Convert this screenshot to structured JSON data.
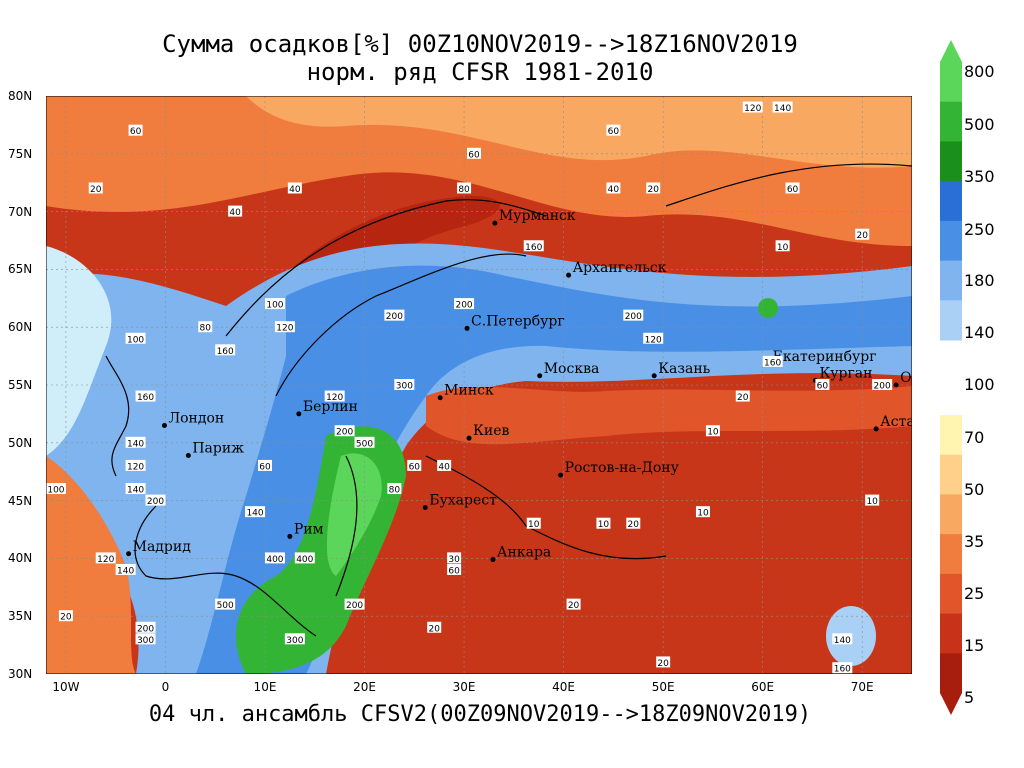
{
  "title_line1": "Сумма осадков[%] 00Z10NOV2019-->18Z16NOV2019",
  "title_line2": "норм. ряд CFSR 1981-2010",
  "footer": "04 чл. ансамбль CFSV2(00Z09NOV2019-->18Z09NOV2019)",
  "lat_ticks": [
    "80N",
    "75N",
    "70N",
    "65N",
    "60N",
    "55N",
    "50N",
    "45N",
    "40N",
    "35N",
    "30N"
  ],
  "lon_ticks": [
    "10W",
    "0",
    "10E",
    "20E",
    "30E",
    "40E",
    "50E",
    "60E",
    "70E"
  ],
  "colorbar": {
    "labels": [
      "800",
      "500",
      "350",
      "250",
      "180",
      "140",
      "100",
      "70",
      "50",
      "35",
      "25",
      "15",
      "5"
    ],
    "colors": [
      "#5bd65b",
      "#34b434",
      "#1a8f1a",
      "#2a6fd6",
      "#4a8fe6",
      "#7fb4ef",
      "#aad0f5",
      "#cfeefa",
      "#fff4b0",
      "#ffd08a",
      "#f8a860",
      "#f07d3d",
      "#e0552a",
      "#c83218",
      "#a81e0e"
    ]
  },
  "cities": [
    {
      "name": "Мурманск",
      "lon": 33.1,
      "lat": 69.0
    },
    {
      "name": "Архангельск",
      "lon": 40.5,
      "lat": 64.5
    },
    {
      "name": "С.Петербург",
      "lon": 30.3,
      "lat": 59.9
    },
    {
      "name": "Москва",
      "lon": 37.6,
      "lat": 55.8
    },
    {
      "name": "Казань",
      "lon": 49.1,
      "lat": 55.8
    },
    {
      "name": "Екатеринбург",
      "lon": 60.6,
      "lat": 56.8
    },
    {
      "name": "Курган",
      "lon": 65.3,
      "lat": 55.4
    },
    {
      "name": "Омск",
      "lon": 73.4,
      "lat": 55.0
    },
    {
      "name": "Астана",
      "lon": 71.4,
      "lat": 51.2
    },
    {
      "name": "Минск",
      "lon": 27.6,
      "lat": 53.9
    },
    {
      "name": "Берлин",
      "lon": 13.4,
      "lat": 52.5
    },
    {
      "name": "Лондон",
      "lon": -0.1,
      "lat": 51.5
    },
    {
      "name": "Париж",
      "lon": 2.3,
      "lat": 48.9
    },
    {
      "name": "Киев",
      "lon": 30.5,
      "lat": 50.4
    },
    {
      "name": "Ростов-на-Дону",
      "lon": 39.7,
      "lat": 47.2
    },
    {
      "name": "Бухарест",
      "lon": 26.1,
      "lat": 44.4
    },
    {
      "name": "Рим",
      "lon": 12.5,
      "lat": 41.9
    },
    {
      "name": "Мадрид",
      "lon": -3.7,
      "lat": 40.4
    },
    {
      "name": "Анкара",
      "lon": 32.9,
      "lat": 39.9
    }
  ],
  "contour_labels": [
    {
      "v": "60",
      "lon": -3,
      "lat": 77
    },
    {
      "v": "20",
      "lon": -7,
      "lat": 72
    },
    {
      "v": "40",
      "lon": 7,
      "lat": 70
    },
    {
      "v": "40",
      "lon": 13,
      "lat": 72
    },
    {
      "v": "60",
      "lon": 31,
      "lat": 75
    },
    {
      "v": "80",
      "lon": 30,
      "lat": 72
    },
    {
      "v": "60",
      "lon": 45,
      "lat": 77
    },
    {
      "v": "40",
      "lon": 45,
      "lat": 72
    },
    {
      "v": "20",
      "lon": 49,
      "lat": 72
    },
    {
      "v": "120",
      "lon": 59,
      "lat": 79
    },
    {
      "v": "140",
      "lon": 62,
      "lat": 79
    },
    {
      "v": "60",
      "lon": 63,
      "lat": 72
    },
    {
      "v": "20",
      "lon": 70,
      "lat": 68
    },
    {
      "v": "10",
      "lon": 62,
      "lat": 67
    },
    {
      "v": "160",
      "lon": 37,
      "lat": 67
    },
    {
      "v": "200",
      "lon": 23,
      "lat": 61
    },
    {
      "v": "200",
      "lon": 30,
      "lat": 62
    },
    {
      "v": "200",
      "lon": 47,
      "lat": 61
    },
    {
      "v": "100",
      "lon": 11,
      "lat": 62
    },
    {
      "v": "120",
      "lon": 12,
      "lat": 60
    },
    {
      "v": "160",
      "lon": 6,
      "lat": 58
    },
    {
      "v": "80",
      "lon": 4,
      "lat": 60
    },
    {
      "v": "100",
      "lon": -3,
      "lat": 59
    },
    {
      "v": "300",
      "lon": 24,
      "lat": 55
    },
    {
      "v": "120",
      "lon": 17,
      "lat": 54
    },
    {
      "v": "200",
      "lon": 18,
      "lat": 51
    },
    {
      "v": "500",
      "lon": 20,
      "lat": 50
    },
    {
      "v": "60",
      "lon": 25,
      "lat": 48
    },
    {
      "v": "40",
      "lon": 28,
      "lat": 48
    },
    {
      "v": "80",
      "lon": 23,
      "lat": 46
    },
    {
      "v": "200",
      "lon": -1,
      "lat": 45
    },
    {
      "v": "140",
      "lon": -3,
      "lat": 46
    },
    {
      "v": "100",
      "lon": -11,
      "lat": 46
    },
    {
      "v": "160",
      "lon": -2,
      "lat": 54
    },
    {
      "v": "140",
      "lon": -3,
      "lat": 50
    },
    {
      "v": "120",
      "lon": -3,
      "lat": 48
    },
    {
      "v": "140",
      "lon": 9,
      "lat": 44
    },
    {
      "v": "60",
      "lon": 10,
      "lat": 48
    },
    {
      "v": "120",
      "lon": -6,
      "lat": 40
    },
    {
      "v": "140",
      "lon": -4,
      "lat": 39
    },
    {
      "v": "400",
      "lon": 11,
      "lat": 40
    },
    {
      "v": "400",
      "lon": 14,
      "lat": 40
    },
    {
      "v": "500",
      "lon": 6,
      "lat": 36
    },
    {
      "v": "200",
      "lon": -2,
      "lat": 34
    },
    {
      "v": "300",
      "lon": -2,
      "lat": 33
    },
    {
      "v": "300",
      "lon": 13,
      "lat": 33
    },
    {
      "v": "200",
      "lon": 19,
      "lat": 36
    },
    {
      "v": "30",
      "lon": 29,
      "lat": 40
    },
    {
      "v": "60",
      "lon": 29,
      "lat": 39
    },
    {
      "v": "20",
      "lon": 27,
      "lat": 34
    },
    {
      "v": "10",
      "lon": 37,
      "lat": 43
    },
    {
      "v": "10",
      "lon": 44,
      "lat": 43
    },
    {
      "v": "20",
      "lon": 47,
      "lat": 43
    },
    {
      "v": "10",
      "lon": 54,
      "lat": 44
    },
    {
      "v": "10",
      "lon": 55,
      "lat": 51
    },
    {
      "v": "10",
      "lon": 71,
      "lat": 45
    },
    {
      "v": "20",
      "lon": 41,
      "lat": 36
    },
    {
      "v": "20",
      "lon": 58,
      "lat": 54
    },
    {
      "v": "20",
      "lon": -10,
      "lat": 35
    },
    {
      "v": "20",
      "lon": 50,
      "lat": 31
    },
    {
      "v": "160",
      "lon": 68,
      "lat": 30.5
    },
    {
      "v": "140",
      "lon": 68,
      "lat": 33
    },
    {
      "v": "200",
      "lon": 72,
      "lat": 55
    },
    {
      "v": "160",
      "lon": 61,
      "lat": 57
    },
    {
      "v": "120",
      "lon": 49,
      "lat": 59
    },
    {
      "v": "60",
      "lon": 66,
      "lat": 55
    }
  ]
}
